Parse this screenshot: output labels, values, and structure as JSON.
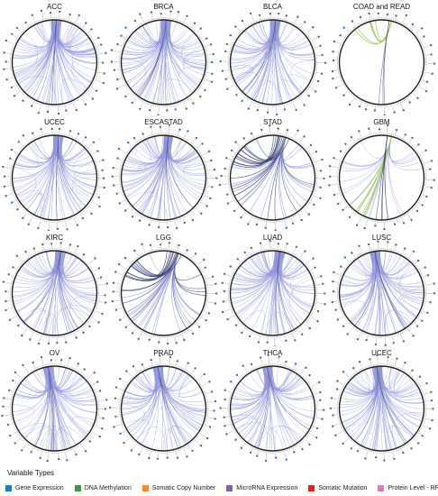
{
  "panels": [
    {
      "title": "ACC",
      "style": "dense",
      "colors": [
        "blue"
      ]
    },
    {
      "title": "BRCA",
      "style": "dense",
      "colors": [
        "blue"
      ]
    },
    {
      "title": "BLCA",
      "style": "dense",
      "colors": [
        "blue"
      ]
    },
    {
      "title": "COAD and READ",
      "style": "sparse",
      "colors": [
        "green",
        "dark"
      ]
    },
    {
      "title": "UCEC",
      "style": "dense",
      "colors": [
        "blue"
      ]
    },
    {
      "title": "ESCASTAD",
      "style": "dense",
      "colors": [
        "blue"
      ]
    },
    {
      "title": "STAD",
      "style": "fan",
      "colors": [
        "dark",
        "blue"
      ]
    },
    {
      "title": "GBM",
      "style": "mixed",
      "colors": [
        "blue",
        "green",
        "dark"
      ]
    },
    {
      "title": "KIRC",
      "style": "dense",
      "colors": [
        "blue"
      ]
    },
    {
      "title": "LGG",
      "style": "fan",
      "colors": [
        "blue",
        "dark"
      ]
    },
    {
      "title": "LUAD",
      "style": "dense",
      "colors": [
        "blue"
      ]
    },
    {
      "title": "LUSC",
      "style": "dense",
      "colors": [
        "blue"
      ]
    },
    {
      "title": "OV",
      "style": "dense",
      "colors": [
        "blue"
      ]
    },
    {
      "title": "PRAD",
      "style": "dense",
      "colors": [
        "blue"
      ]
    },
    {
      "title": "THCA",
      "style": "dense",
      "colors": [
        "blue"
      ]
    },
    {
      "title": "UCEC",
      "style": "dense",
      "colors": [
        "blue"
      ]
    }
  ],
  "link_colors": {
    "blue": "#8f95d8",
    "green": "#9ec65a",
    "dark": "#2f3a6b"
  },
  "legend": {
    "title": "Variable Types",
    "items": [
      {
        "label": "Gene Expression",
        "color": "#2a78b7"
      },
      {
        "label": "DNA Methylation",
        "color": "#3f9a46"
      },
      {
        "label": "Somatic Copy Number",
        "color": "#f28c28"
      },
      {
        "label": "MicroRNA Expression",
        "color": "#8a5fb0"
      },
      {
        "label": "Somatic Mutation",
        "color": "#d62728"
      },
      {
        "label": "Protein Level - RPPA",
        "color": "#e377c2"
      }
    ]
  }
}
